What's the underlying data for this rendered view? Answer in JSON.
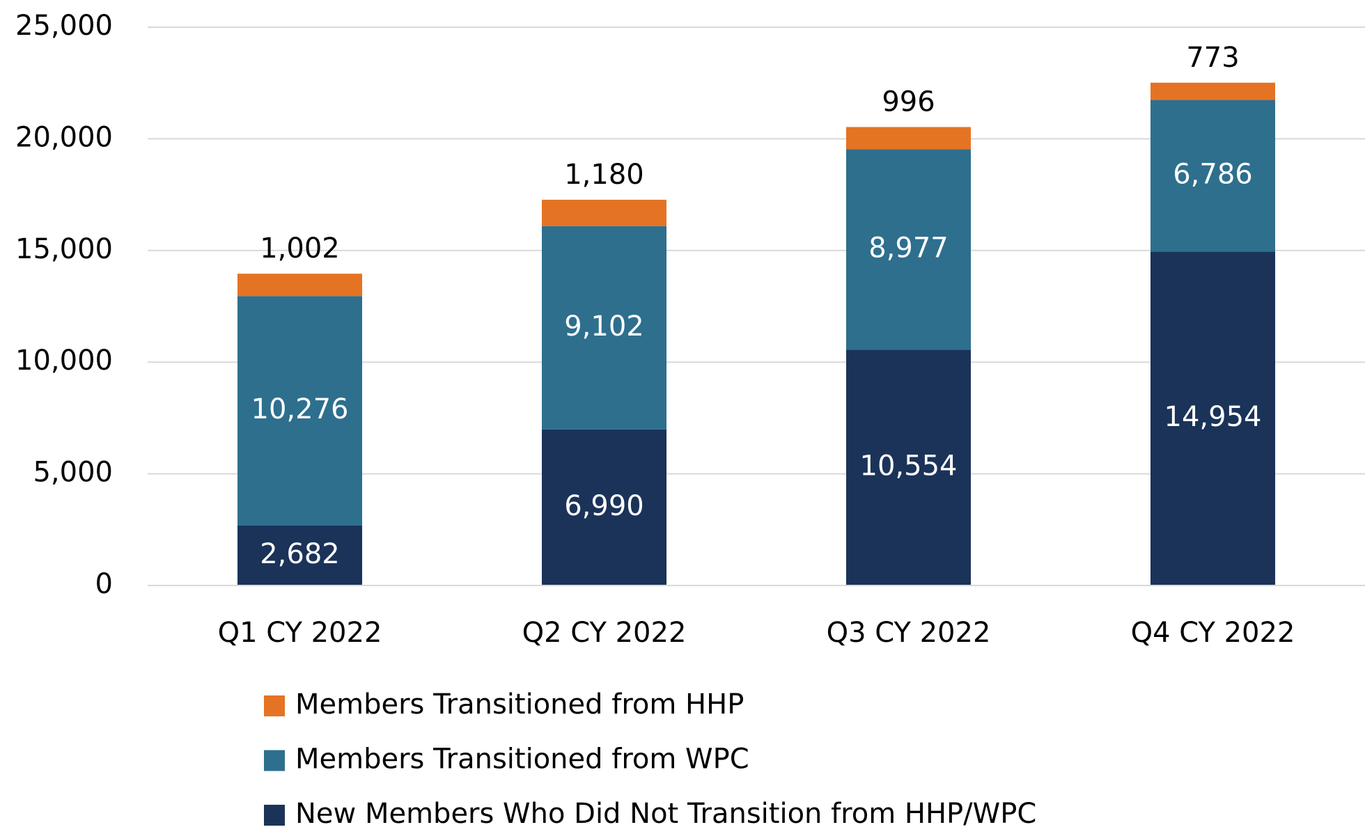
{
  "chart_data": {
    "type": "stacked_bar",
    "categories": [
      "Q1 CY 2022",
      "Q2 CY 2022",
      "Q3 CY 2022",
      "Q4 CY 2022"
    ],
    "series": [
      {
        "name": "New Members Who Did Not Transition from HHP/WPC",
        "color": "#1b3359",
        "values": [
          2682,
          6990,
          10554,
          14954
        ],
        "value_labels": [
          "2,682",
          "6,990",
          "10,554",
          "14,954"
        ]
      },
      {
        "name": "Members Transitioned from WPC",
        "color": "#2e6f8e",
        "values": [
          10276,
          9102,
          8977,
          6786
        ],
        "value_labels": [
          "10,276",
          "9,102",
          "8,977",
          "6,786"
        ]
      },
      {
        "name": "Members Transitioned from HHP",
        "color": "#e57324",
        "values": [
          1002,
          1180,
          996,
          773
        ],
        "value_labels": [
          "1,002",
          "1,180",
          "996",
          "773"
        ]
      }
    ],
    "ylim": [
      0,
      25000
    ],
    "yticks": [
      0,
      {
        "value": 5000,
        "label": "5,000"
      },
      {
        "value": 10000,
        "label": "10,000"
      },
      {
        "value": 15000,
        "label": "15,000"
      },
      {
        "value": 20000,
        "label": "20,000"
      },
      {
        "value": 25000,
        "label": "25,000"
      }
    ],
    "grid": true
  }
}
